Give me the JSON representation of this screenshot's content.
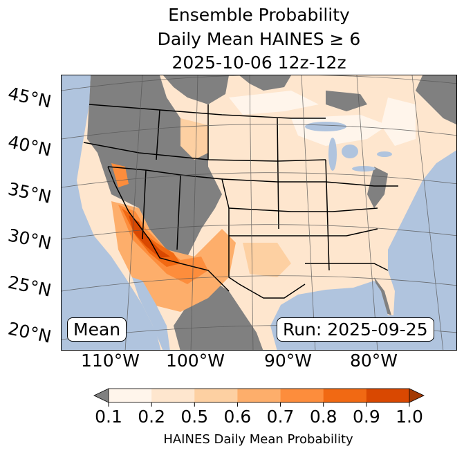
{
  "title": {
    "line1": "Ensemble Probability",
    "line2": "Daily Mean HAINES ≥ 6",
    "line3": "2025-10-06 12z-12z"
  },
  "map": {
    "lat_labels": [
      "45°N",
      "40°N",
      "35°N",
      "30°N",
      "25°N",
      "20°N"
    ],
    "lon_labels": [
      "110°W",
      "100°W",
      "90°W",
      "80°W"
    ],
    "mean_label": "Mean",
    "run_label": "Run: 2025-09-25",
    "colors": {
      "ocean": "#b0c4de",
      "below": "#808080"
    }
  },
  "colorbar": {
    "ticks": [
      "0.1",
      "0.2",
      "0.5",
      "0.6",
      "0.7",
      "0.8",
      "0.9",
      "1.0"
    ],
    "colors": [
      "#fff5eb",
      "#fee6ce",
      "#fdd0a2",
      "#fdae6b",
      "#fd8d3c",
      "#f16913",
      "#d94801"
    ],
    "under_color": "#808080",
    "over_color": "#a33a03",
    "label": "HAINES Daily Mean Probability"
  }
}
